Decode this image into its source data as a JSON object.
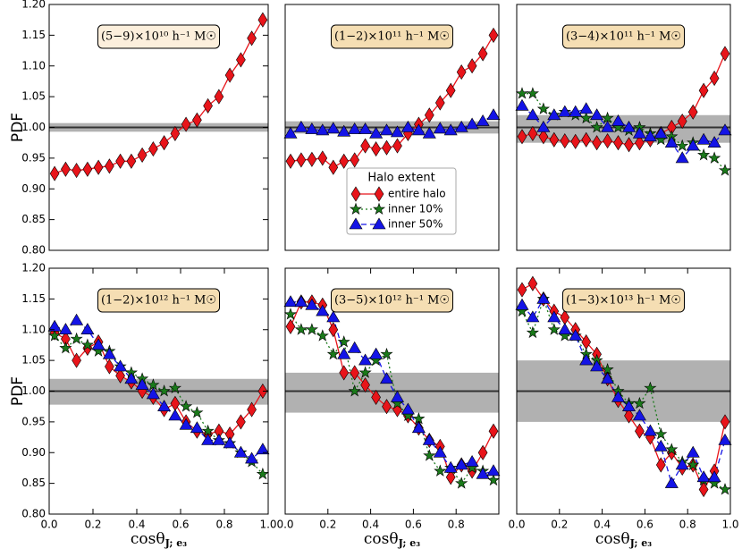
{
  "chart_data": [
    {
      "type": "line",
      "title": "(5−9)×10¹⁰ h⁻¹ M☉",
      "title_box_color": "#fcefdc",
      "x": [
        0.025,
        0.075,
        0.125,
        0.175,
        0.225,
        0.275,
        0.325,
        0.375,
        0.425,
        0.475,
        0.525,
        0.575,
        0.625,
        0.675,
        0.725,
        0.775,
        0.825,
        0.875,
        0.925,
        0.975
      ],
      "xlim": [
        0,
        1
      ],
      "ylim": [
        0.8,
        1.2
      ],
      "band": [
        0.993,
        1.007
      ],
      "reference": 1,
      "ylabel": "PDF",
      "yticks": [
        {
          "value": 0.8,
          "label": "0.80"
        },
        0.85,
        {
          "value": 0.9,
          "label": "0.90"
        },
        0.95,
        {
          "value": 1,
          "label": "1.00"
        },
        1.05,
        {
          "value": 1.1,
          "label": "1.10"
        },
        1.15,
        {
          "value": 1.2,
          "label": "1.20"
        }
      ],
      "series": [
        {
          "color": "#e8141a",
          "marker": "diamond",
          "linestyle": "solid",
          "values": [
            0.925,
            0.932,
            0.93,
            0.932,
            0.935,
            0.937,
            0.945,
            0.945,
            0.955,
            0.965,
            0.975,
            0.99,
            1.005,
            1.012,
            1.035,
            1.05,
            1.085,
            1.11,
            1.145,
            1.175
          ]
        }
      ]
    },
    {
      "type": "line",
      "title": "(1−2)×10¹¹ h⁻¹ M☉",
      "title_box_color": "#f5deb3",
      "x": [
        0.025,
        0.075,
        0.125,
        0.175,
        0.225,
        0.275,
        0.325,
        0.375,
        0.425,
        0.475,
        0.525,
        0.575,
        0.625,
        0.675,
        0.725,
        0.775,
        0.825,
        0.875,
        0.925,
        0.975
      ],
      "xlim": [
        0,
        1
      ],
      "ylim": [
        0.8,
        1.2
      ],
      "band": [
        0.99,
        1.01
      ],
      "reference": 1,
      "legend_title": "Halo extent",
      "series": [
        {
          "color": "#e8141a",
          "marker": "diamond",
          "linestyle": "solid",
          "values": [
            0.945,
            0.947,
            0.948,
            0.95,
            0.935,
            0.945,
            0.947,
            0.97,
            0.965,
            0.967,
            0.97,
            0.99,
            1.005,
            1.02,
            1.04,
            1.06,
            1.09,
            1.1,
            1.12,
            1.15
          ]
        },
        {
          "color": "#1414e6",
          "marker": "triangle",
          "linestyle": "dashed",
          "values": [
            0.99,
            1.0,
            0.997,
            0.995,
            0.998,
            0.993,
            0.997,
            0.997,
            0.99,
            0.995,
            0.992,
            1.0,
            0.995,
            0.99,
            0.998,
            0.995,
            1.0,
            1.005,
            1.01,
            1.02
          ]
        }
      ]
    },
    {
      "type": "line",
      "title": "(3−4)×10¹¹ h⁻¹ M☉",
      "title_box_color": "#f5deb3",
      "x": [
        0.025,
        0.075,
        0.125,
        0.175,
        0.225,
        0.275,
        0.325,
        0.375,
        0.425,
        0.475,
        0.525,
        0.575,
        0.625,
        0.675,
        0.725,
        0.775,
        0.825,
        0.875,
        0.925,
        0.975
      ],
      "xlim": [
        0,
        1
      ],
      "ylim": [
        0.8,
        1.2
      ],
      "band": [
        0.975,
        1.02
      ],
      "reference": 1,
      "series": [
        {
          "name": "entire halo",
          "color": "#e8141a",
          "marker": "diamond",
          "linestyle": "solid",
          "values": [
            0.985,
            0.99,
            0.985,
            0.98,
            0.978,
            0.977,
            0.98,
            0.975,
            0.978,
            0.975,
            0.972,
            0.975,
            0.98,
            0.99,
            1.0,
            1.01,
            1.025,
            1.06,
            1.08,
            1.12
          ]
        },
        {
          "name": "inner 10%",
          "color": "#1a7a1a",
          "marker": "star",
          "linestyle": "dotted",
          "values": [
            1.055,
            1.055,
            1.03,
            1.02,
            1.025,
            1.02,
            1.015,
            1.0,
            1.015,
            1.0,
            0.995,
            1.0,
            0.99,
            0.98,
            0.985,
            0.97,
            0.975,
            0.955,
            0.95,
            0.93
          ]
        },
        {
          "name": "inner 50%",
          "color": "#1414e6",
          "marker": "triangle",
          "linestyle": "dashed",
          "values": [
            1.035,
            1.02,
            1.0,
            1.02,
            1.025,
            1.025,
            1.03,
            1.02,
            1.0,
            1.01,
            1.0,
            0.99,
            0.985,
            0.99,
            0.975,
            0.95,
            0.97,
            0.98,
            0.975,
            0.995
          ]
        }
      ]
    },
    {
      "type": "line",
      "title": "(1−2)×10¹² h⁻¹ M☉",
      "title_box_color": "#f5deb3",
      "x": [
        0.025,
        0.075,
        0.125,
        0.175,
        0.225,
        0.275,
        0.325,
        0.375,
        0.425,
        0.475,
        0.525,
        0.575,
        0.625,
        0.675,
        0.725,
        0.775,
        0.825,
        0.875,
        0.925,
        0.975
      ],
      "xlim": [
        0,
        1
      ],
      "ylim": [
        0.8,
        1.2
      ],
      "band": [
        0.978,
        1.02
      ],
      "reference": 1,
      "ylabel": "PDF",
      "xlabel": "cosθ",
      "xlabel_sub": "J; e₃",
      "xticks": [
        {
          "value": 0,
          "label": "0.0"
        },
        0.2,
        0.4,
        0.6,
        0.8,
        {
          "value": 1,
          "label": "1.0"
        }
      ],
      "yticks": [
        {
          "value": 0.8,
          "label": "0.80"
        },
        0.85,
        {
          "value": 0.9,
          "label": "0.90"
        },
        0.95,
        {
          "value": 1,
          "label": "1.00"
        },
        1.05,
        {
          "value": 1.1,
          "label": "1.10"
        },
        1.15,
        {
          "value": 1.2,
          "label": "1.20"
        }
      ],
      "series": [
        {
          "color": "#e8141a",
          "marker": "diamond",
          "linestyle": "solid",
          "values": [
            1.095,
            1.085,
            1.05,
            1.07,
            1.08,
            1.04,
            1.025,
            1.015,
            1.0,
            0.99,
            0.97,
            0.98,
            0.95,
            0.935,
            0.93,
            0.935,
            0.93,
            0.95,
            0.97,
            1.0
          ]
        },
        {
          "color": "#1a7a1a",
          "marker": "star",
          "linestyle": "dotted",
          "values": [
            1.09,
            1.07,
            1.085,
            1.075,
            1.065,
            1.065,
            1.04,
            1.03,
            1.02,
            1.01,
            1.0,
            1.005,
            0.975,
            0.965,
            0.935,
            0.92,
            0.915,
            0.9,
            0.885,
            0.865
          ]
        },
        {
          "color": "#1414e6",
          "marker": "triangle",
          "linestyle": "dashed",
          "values": [
            1.105,
            1.1,
            1.115,
            1.1,
            1.075,
            1.06,
            1.04,
            1.02,
            1.01,
            0.995,
            0.975,
            0.96,
            0.945,
            0.94,
            0.92,
            0.92,
            0.915,
            0.9,
            0.89,
            0.905
          ]
        }
      ]
    },
    {
      "type": "line",
      "title": "(3−5)×10¹² h⁻¹ M☉",
      "title_box_color": "#f5deb3",
      "x": [
        0.025,
        0.075,
        0.125,
        0.175,
        0.225,
        0.275,
        0.325,
        0.375,
        0.425,
        0.475,
        0.525,
        0.575,
        0.625,
        0.675,
        0.725,
        0.775,
        0.825,
        0.875,
        0.925,
        0.975
      ],
      "xlim": [
        0,
        1
      ],
      "ylim": [
        0.8,
        1.2
      ],
      "band": [
        0.965,
        1.03
      ],
      "reference": 1,
      "xlabel": "cosθ",
      "xlabel_sub": "J; e₃",
      "xticks": [
        {
          "value": 0,
          "label": "0.0"
        },
        0.2,
        0.4,
        0.6,
        0.8
      ],
      "series": [
        {
          "color": "#e8141a",
          "marker": "diamond",
          "linestyle": "solid",
          "values": [
            1.105,
            1.145,
            1.145,
            1.14,
            1.1,
            1.03,
            1.03,
            1.01,
            0.99,
            0.975,
            0.97,
            0.96,
            0.94,
            0.92,
            0.91,
            0.86,
            0.88,
            0.87,
            0.9,
            0.935
          ]
        },
        {
          "color": "#1a7a1a",
          "marker": "star",
          "linestyle": "dotted",
          "values": [
            1.125,
            1.1,
            1.1,
            1.09,
            1.06,
            1.08,
            1.0,
            1.03,
            1.05,
            1.06,
            0.98,
            0.96,
            0.955,
            0.895,
            0.87,
            0.875,
            0.85,
            0.875,
            0.87,
            0.855
          ]
        },
        {
          "color": "#1414e6",
          "marker": "triangle",
          "linestyle": "dashed",
          "values": [
            1.145,
            1.145,
            1.14,
            1.13,
            1.12,
            1.06,
            1.07,
            1.05,
            1.06,
            1.02,
            0.99,
            0.97,
            0.94,
            0.92,
            0.9,
            0.875,
            0.88,
            0.885,
            0.865,
            0.87
          ]
        }
      ]
    },
    {
      "type": "line",
      "title": "(1−3)×10¹³ h⁻¹ M☉",
      "title_box_color": "#f5deb3",
      "x": [
        0.025,
        0.075,
        0.125,
        0.175,
        0.225,
        0.275,
        0.325,
        0.375,
        0.425,
        0.475,
        0.525,
        0.575,
        0.625,
        0.675,
        0.725,
        0.775,
        0.825,
        0.875,
        0.925,
        0.975
      ],
      "xlim": [
        0,
        1
      ],
      "ylim": [
        0.8,
        1.2
      ],
      "band": [
        0.95,
        1.05
      ],
      "reference": 1,
      "xlabel": "cosθ",
      "xlabel_sub": "J; e₃",
      "xticks": [
        {
          "value": 0,
          "label": "0.0"
        },
        0.2,
        0.4,
        0.6,
        0.8,
        {
          "value": 1,
          "label": "1.0"
        }
      ],
      "series": [
        {
          "color": "#e8141a",
          "marker": "diamond",
          "linestyle": "solid",
          "values": [
            1.165,
            1.175,
            1.15,
            1.13,
            1.12,
            1.1,
            1.08,
            1.06,
            1.02,
            0.985,
            0.96,
            0.935,
            0.925,
            0.88,
            0.9,
            0.875,
            0.88,
            0.84,
            0.87,
            0.95
          ]
        },
        {
          "color": "#1a7a1a",
          "marker": "star",
          "linestyle": "dotted",
          "values": [
            1.13,
            1.095,
            1.15,
            1.1,
            1.09,
            1.09,
            1.06,
            1.05,
            1.035,
            1.0,
            0.98,
            0.98,
            1.005,
            0.93,
            0.905,
            0.885,
            0.88,
            0.855,
            0.85,
            0.84
          ]
        },
        {
          "color": "#1414e6",
          "marker": "triangle",
          "linestyle": "dashed",
          "values": [
            1.14,
            1.12,
            1.15,
            1.12,
            1.1,
            1.09,
            1.05,
            1.04,
            1.02,
            0.99,
            0.975,
            0.96,
            0.935,
            0.91,
            0.85,
            0.88,
            0.9,
            0.86,
            0.86,
            0.92
          ]
        }
      ]
    }
  ]
}
